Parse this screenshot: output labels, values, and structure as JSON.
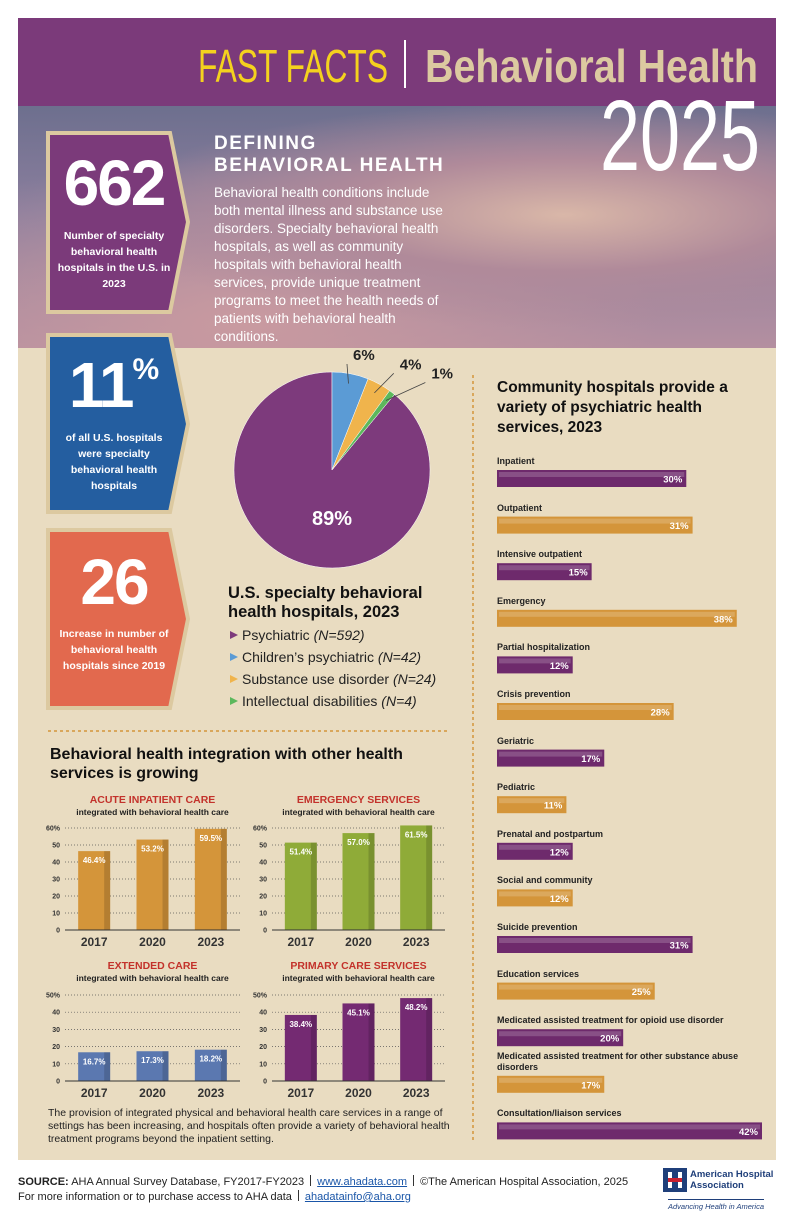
{
  "header": {
    "title_left": "FAST FACTS",
    "title_right": "Behavioral Health",
    "year": "2025"
  },
  "stats": [
    {
      "number": "662",
      "text": "Number of specialty behavioral health hospitals in the U.S. in 2023"
    },
    {
      "number": "11",
      "unit": "%",
      "text": "of all U.S. hospitals were specialty behavioral health hospitals"
    },
    {
      "number": "26",
      "text": "Increase in number of behavioral health hospitals since 2019"
    }
  ],
  "definition": {
    "title_lines": [
      "DEFINING",
      "BEHAVIORAL HEALTH"
    ],
    "text": "Behavioral health conditions include both mental illness and substance use disorders. Specialty behavioral health hospitals, as well as community hospitals with behavioral health services, provide unique treatment programs to meet the health needs of patients with behavioral health conditions."
  },
  "integration": {
    "title": "Behavioral health integration with other health services is growing",
    "note": "The provision of integrated physical and behavioral health care services in a range of settings has been increasing, and hospitals often provide a variety of behavioral health treatment programs beyond the inpatient setting."
  },
  "chart_data": [
    {
      "type": "pie",
      "title": "U.S. specialty behavioral health hospitals, 2023",
      "categories": [
        "Psychiatric",
        "Children’s psychiatric",
        "Substance use disorder",
        "Intellectual disabilities"
      ],
      "notes": [
        "(N=592)",
        "(N=42)",
        "(N=24)",
        "(N=4)"
      ],
      "values": [
        89,
        6,
        4,
        1
      ],
      "value_labels": [
        "89%",
        "6%",
        "4%",
        "1%"
      ],
      "colors": [
        "#7d3a7c",
        "#5b9bd5",
        "#f0b44c",
        "#5cb85c"
      ]
    },
    {
      "type": "bar",
      "orientation": "horizontal",
      "title": "Community hospitals provide a variety of psychiatric health services, 2023",
      "categories": [
        "Inpatient",
        "Outpatient",
        "Intensive outpatient",
        "Emergency",
        "Partial hospitalization",
        "Crisis prevention",
        "Geriatric",
        "Pediatric",
        "Prenatal and postpartum",
        "Social and community",
        "Suicide prevention",
        "Education services",
        "Medicated assisted treatment for opioid use disorder",
        "Medicated assisted treatment for other substance abuse disorders",
        "Consultation/liaison services"
      ],
      "values": [
        30,
        31,
        15,
        38,
        12,
        28,
        17,
        11,
        12,
        12,
        31,
        25,
        20,
        17,
        42
      ],
      "value_labels": [
        "30%",
        "31%",
        "15%",
        "38%",
        "12%",
        "28%",
        "17%",
        "11%",
        "12%",
        "12%",
        "31%",
        "25%",
        "20%",
        "17%",
        "42%"
      ],
      "colors": [
        "#6e2a6c",
        "#d4953a",
        "#6e2a6c",
        "#d4953a",
        "#6e2a6c",
        "#d4953a",
        "#6e2a6c",
        "#d4953a",
        "#6e2a6c",
        "#d4953a",
        "#6e2a6c",
        "#d4953a",
        "#6e2a6c",
        "#d4953a",
        "#6e2a6c"
      ]
    },
    {
      "type": "bar",
      "title": "ACUTE INPATIENT CARE",
      "subtitle": "integrated with behavioral health care",
      "categories": [
        "2017",
        "2020",
        "2023"
      ],
      "values": [
        46.4,
        53.2,
        59.5
      ],
      "value_labels": [
        "46.4%",
        "53.2%",
        "59.5%"
      ],
      "color": "#d4953a",
      "ylim": [
        0,
        60
      ],
      "yticks": [
        0,
        10,
        20,
        30,
        40,
        50,
        {
          "value": 60,
          "label": "60%"
        }
      ],
      "grid": true
    },
    {
      "type": "bar",
      "title": "EMERGENCY SERVICES",
      "subtitle": "integrated with behavioral health care",
      "categories": [
        "2017",
        "2020",
        "2023"
      ],
      "values": [
        51.4,
        57.0,
        61.5
      ],
      "value_labels": [
        "51.4%",
        "57.0%",
        "61.5%"
      ],
      "color": "#8fab38",
      "ylim": [
        0,
        60
      ],
      "yticks": [
        0,
        10,
        20,
        30,
        40,
        50,
        {
          "value": 60,
          "label": "60%"
        }
      ],
      "grid": true
    },
    {
      "type": "bar",
      "title": "EXTENDED CARE",
      "subtitle": "integrated with behavioral health care",
      "categories": [
        "2017",
        "2020",
        "2023"
      ],
      "values": [
        16.7,
        17.3,
        18.2
      ],
      "value_labels": [
        "16.7%",
        "17.3%",
        "18.2%"
      ],
      "color": "#5b78b0",
      "ylim": [
        0,
        50
      ],
      "yticks": [
        0,
        10,
        20,
        30,
        40,
        {
          "value": 50,
          "label": "50%"
        }
      ],
      "grid": true
    },
    {
      "type": "bar",
      "title": "PRIMARY CARE SERVICES",
      "subtitle": "integrated with behavioral health care",
      "categories": [
        "2017",
        "2020",
        "2023"
      ],
      "values": [
        38.4,
        45.1,
        48.2
      ],
      "value_labels": [
        "38.4%",
        "45.1%",
        "48.2%"
      ],
      "color": "#742a72",
      "ylim": [
        0,
        50
      ],
      "yticks": [
        0,
        10,
        20,
        30,
        40,
        {
          "value": 50,
          "label": "50%"
        }
      ],
      "grid": true
    }
  ],
  "footer": {
    "source_label": "SOURCE:",
    "source": "AHA Annual Survey Database, FY2017-FY2023",
    "website": "www.ahadata.com",
    "copyright": "©The American Hospital Association, 2025",
    "info": "For more information or to purchase access to AHA data",
    "email": "ahadatainfo@aha.org",
    "logo_name": "American Hospital Association",
    "logo_tagline": "Advancing Health in America"
  }
}
